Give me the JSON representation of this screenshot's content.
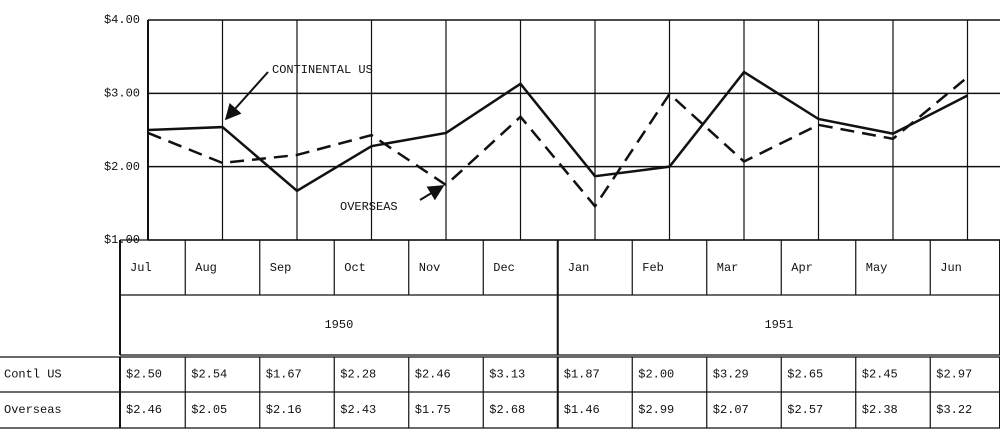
{
  "chart_data": {
    "type": "line",
    "categories": [
      "Jul",
      "Aug",
      "Sep",
      "Oct",
      "Nov",
      "Dec",
      "Jan",
      "Feb",
      "Mar",
      "Apr",
      "May",
      "Jun"
    ],
    "years": [
      "1950",
      "1951"
    ],
    "series": [
      {
        "name": "Contl US",
        "color": "#111111",
        "style": "solid",
        "values": [
          2.5,
          2.54,
          1.67,
          2.28,
          2.46,
          3.13,
          1.87,
          2.0,
          3.29,
          2.65,
          2.45,
          2.97
        ],
        "value_labels": [
          "$2.50",
          "$2.54",
          "$1.67",
          "$2.28",
          "$2.46",
          "$3.13",
          "$1.87",
          "$2.00",
          "$3.29",
          "$2.65",
          "$2.45",
          "$2.97"
        ]
      },
      {
        "name": "Overseas",
        "color": "#111111",
        "style": "dashed",
        "values": [
          2.46,
          2.05,
          2.16,
          2.43,
          1.75,
          2.68,
          1.46,
          2.99,
          2.07,
          2.57,
          2.38,
          3.22
        ],
        "value_labels": [
          "$2.46",
          "$2.05",
          "$2.16",
          "$2.43",
          "$1.75",
          "$2.68",
          "$1.46",
          "$2.99",
          "$2.07",
          "$2.57",
          "$2.38",
          "$3.22"
        ]
      }
    ],
    "annotations": [
      "CONTINENTAL US",
      "OVERSEAS"
    ],
    "ylim": [
      1,
      4
    ],
    "yticks": [
      {
        "value": 1,
        "label": "$1.00"
      },
      {
        "value": 2,
        "label": "$2.00"
      },
      {
        "value": 3,
        "label": "$3.00"
      },
      {
        "value": 4,
        "label": "$4.00"
      }
    ],
    "grid": true
  }
}
